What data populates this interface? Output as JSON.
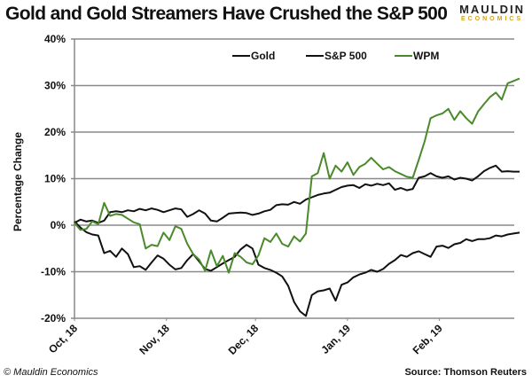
{
  "header": {
    "title": "Gold and Gold Streamers Have Crushed the S&P 500",
    "logo_line1": "MAULDIN",
    "logo_line2": "ECONOMICS"
  },
  "footer": {
    "copyright": "© Mauldin Economics",
    "source": "Source: Thomson Reuters"
  },
  "chart_data": {
    "type": "line",
    "title": "Gold and Gold Streamers Have Crushed the S&P 500",
    "xlabel": "",
    "ylabel": "Percentage Change",
    "ylim": [
      -20,
      40
    ],
    "yticks": [
      40,
      30,
      20,
      10,
      0,
      -10,
      -20
    ],
    "ytick_labels": [
      "40%",
      "30%",
      "20%",
      "10%",
      "0%",
      "-10%",
      "-20%"
    ],
    "x_unit": "days since Oct 1, 2018",
    "xlim": [
      0,
      150
    ],
    "xticks": [
      0,
      31,
      61,
      92,
      123
    ],
    "xtick_labels": [
      "Oct, 18",
      "Nov, 18",
      "Dec, 18",
      "Jan, 19",
      "Feb, 19"
    ],
    "grid": "horizontal",
    "legend_position": "top-center",
    "series": [
      {
        "name": "Gold",
        "color": "#111111",
        "x": [
          0,
          2,
          4,
          6,
          8,
          10,
          12,
          14,
          16,
          18,
          20,
          22,
          24,
          26,
          28,
          30,
          32,
          34,
          36,
          38,
          40,
          42,
          44,
          46,
          48,
          50,
          52,
          54,
          56,
          58,
          60,
          62,
          64,
          66,
          68,
          70,
          72,
          74,
          76,
          78,
          80,
          82,
          84,
          86,
          88,
          90,
          92,
          94,
          96,
          98,
          100,
          102,
          104,
          106,
          108,
          110,
          112,
          114,
          116,
          118,
          120,
          122,
          124,
          126,
          128,
          130,
          132,
          134,
          136,
          138,
          140,
          142,
          144,
          146,
          148,
          150
        ],
        "y": [
          0.5,
          1.2,
          0.8,
          1.0,
          0.5,
          1.0,
          2.8,
          3.0,
          2.8,
          3.2,
          3.0,
          3.5,
          3.2,
          3.6,
          3.3,
          2.8,
          3.2,
          3.6,
          3.4,
          1.8,
          2.4,
          3.2,
          2.5,
          1.0,
          0.8,
          1.6,
          2.5,
          2.6,
          2.7,
          2.6,
          2.2,
          2.5,
          3.0,
          3.3,
          4.3,
          4.5,
          4.4,
          5.0,
          4.6,
          5.5,
          6.0,
          6.5,
          6.8,
          7.0,
          7.6,
          8.2,
          8.5,
          8.6,
          8.0,
          8.8,
          8.5,
          8.9,
          8.6,
          9.0,
          7.6,
          8.0,
          7.5,
          7.8,
          10.2,
          10.5,
          11.2,
          10.5,
          10.2,
          10.5,
          9.8,
          10.2,
          10.0,
          9.6,
          10.5,
          11.6,
          12.3,
          12.8,
          11.5,
          11.6,
          11.5,
          11.5
        ]
      },
      {
        "name": "S&P 500",
        "color": "#111111",
        "x": [
          0,
          2,
          4,
          6,
          8,
          10,
          12,
          14,
          16,
          18,
          20,
          22,
          24,
          26,
          28,
          30,
          32,
          34,
          36,
          38,
          40,
          42,
          44,
          46,
          48,
          50,
          52,
          54,
          56,
          58,
          60,
          62,
          64,
          66,
          68,
          70,
          72,
          74,
          76,
          78,
          80,
          82,
          84,
          86,
          88,
          90,
          92,
          94,
          96,
          98,
          100,
          102,
          104,
          106,
          108,
          110,
          112,
          114,
          116,
          118,
          120,
          122,
          124,
          126,
          128,
          130,
          132,
          134,
          136,
          138,
          140,
          142,
          144,
          146,
          148,
          150
        ],
        "y": [
          0.8,
          -0.5,
          -1.5,
          -2.0,
          -2.2,
          -6.0,
          -5.5,
          -6.8,
          -5.0,
          -6.2,
          -9.0,
          -8.8,
          -9.6,
          -8.0,
          -6.5,
          -7.2,
          -8.5,
          -9.5,
          -9.2,
          -7.5,
          -6.2,
          -7.8,
          -9.4,
          -9.8,
          -9.0,
          -8.2,
          -7.5,
          -6.8,
          -5.2,
          -4.2,
          -5.0,
          -8.5,
          -9.2,
          -9.6,
          -10.2,
          -11.0,
          -13.0,
          -16.5,
          -18.5,
          -19.5,
          -15.0,
          -14.2,
          -14.0,
          -13.6,
          -16.2,
          -12.8,
          -12.3,
          -11.2,
          -10.6,
          -10.2,
          -9.6,
          -10.0,
          -9.4,
          -8.3,
          -7.5,
          -6.4,
          -6.8,
          -6.0,
          -5.6,
          -6.2,
          -6.8,
          -4.6,
          -4.4,
          -4.9,
          -4.1,
          -3.8,
          -3.0,
          -3.4,
          -3.0,
          -3.0,
          -2.8,
          -2.2,
          -2.4,
          -2.0,
          -1.8,
          -1.6
        ]
      },
      {
        "name": "WPM",
        "color": "#4a8a2a",
        "x": [
          0,
          2,
          4,
          6,
          8,
          10,
          12,
          14,
          16,
          18,
          20,
          22,
          24,
          26,
          28,
          30,
          32,
          34,
          36,
          38,
          40,
          42,
          44,
          46,
          48,
          50,
          52,
          54,
          56,
          58,
          60,
          62,
          64,
          66,
          68,
          70,
          72,
          74,
          76,
          78,
          80,
          82,
          84,
          86,
          88,
          90,
          92,
          94,
          96,
          98,
          100,
          102,
          104,
          106,
          108,
          110,
          112,
          114,
          116,
          118,
          120,
          122,
          124,
          126,
          128,
          130,
          132,
          134,
          136,
          138,
          140,
          142,
          144,
          146,
          148,
          150
        ],
        "y": [
          0.5,
          -1.0,
          -0.8,
          0.8,
          0.2,
          4.8,
          2.0,
          2.4,
          2.2,
          1.4,
          0.6,
          0.2,
          -5.0,
          -4.2,
          -4.5,
          -1.6,
          -3.2,
          -0.2,
          -0.8,
          -4.0,
          -6.2,
          -7.4,
          -9.8,
          -5.4,
          -8.8,
          -6.6,
          -10.2,
          -6.0,
          -6.8,
          -8.0,
          -8.4,
          -6.5,
          -2.8,
          -3.6,
          -1.8,
          -4.0,
          -4.6,
          -2.4,
          -3.5,
          -1.8,
          10.5,
          11.2,
          15.5,
          10.0,
          12.8,
          11.5,
          13.5,
          10.8,
          12.5,
          13.2,
          14.5,
          13.2,
          12.0,
          12.5,
          11.6,
          11.0,
          10.4,
          10.2,
          14.0,
          18.0,
          23.0,
          23.6,
          24.0,
          25.0,
          22.6,
          24.5,
          23.0,
          21.8,
          24.4,
          26.0,
          27.5,
          28.5,
          27.0,
          30.5,
          31.0,
          31.5
        ]
      }
    ]
  }
}
